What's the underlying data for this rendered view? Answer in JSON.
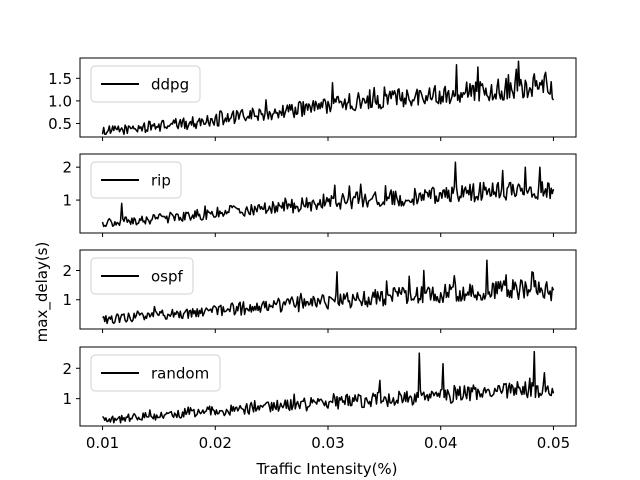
{
  "chart_data": {
    "type": "line",
    "xlabel": "Traffic Intensity(%)",
    "ylabel": "max_delay(s)",
    "x_ticks": [
      "0.01",
      "0.02",
      "0.03",
      "0.04",
      "0.05"
    ],
    "x_tick_values": [
      0.01,
      0.02,
      0.03,
      0.04,
      0.05
    ],
    "xlim": [
      0.008,
      0.052
    ],
    "x_range": [
      0.01,
      0.05
    ],
    "line_color": "#000000",
    "legend_position": "upper-left",
    "shared_x_axis": true,
    "panels": [
      {
        "name": "ddpg",
        "ylim": [
          0.2,
          1.95
        ],
        "yticks": [
          0.5,
          1.0,
          1.5
        ],
        "ytick_labels": [
          "0.5",
          "1.0",
          "1.5"
        ],
        "noise": 0.14,
        "spikes": [
          [
            0.0414,
            1.8
          ],
          [
            0.0433,
            1.75
          ],
          [
            0.0467,
            1.7
          ],
          [
            0.0483,
            1.6
          ],
          [
            0.0492,
            1.55
          ]
        ],
        "x": [
          0.01,
          0.0125,
          0.015,
          0.0175,
          0.02,
          0.0225,
          0.025,
          0.0275,
          0.03,
          0.0325,
          0.035,
          0.0375,
          0.04,
          0.0425,
          0.045,
          0.0475,
          0.05
        ],
        "y": [
          0.32,
          0.38,
          0.45,
          0.5,
          0.58,
          0.66,
          0.74,
          0.82,
          0.9,
          0.98,
          1.04,
          1.1,
          1.15,
          1.2,
          1.25,
          1.3,
          1.25
        ]
      },
      {
        "name": "rip",
        "ylim": [
          0.0,
          2.4
        ],
        "yticks": [
          1,
          2
        ],
        "ytick_labels": [
          "1",
          "2"
        ],
        "noise": 0.17,
        "spikes": [
          [
            0.0117,
            0.9
          ],
          [
            0.0306,
            1.45
          ],
          [
            0.0413,
            2.15
          ],
          [
            0.0455,
            1.9
          ],
          [
            0.0475,
            2.0
          ],
          [
            0.0488,
            2.0
          ]
        ],
        "x": [
          0.01,
          0.0125,
          0.015,
          0.0175,
          0.02,
          0.0225,
          0.025,
          0.0275,
          0.03,
          0.0325,
          0.035,
          0.0375,
          0.04,
          0.0425,
          0.045,
          0.0475,
          0.05
        ],
        "y": [
          0.3,
          0.36,
          0.44,
          0.52,
          0.6,
          0.68,
          0.76,
          0.84,
          0.92,
          1.0,
          1.05,
          1.1,
          1.16,
          1.22,
          1.28,
          1.34,
          1.28
        ]
      },
      {
        "name": "ospf",
        "ylim": [
          0.0,
          2.7
        ],
        "yticks": [
          1,
          2
        ],
        "ytick_labels": [
          "1",
          "2"
        ],
        "noise": 0.2,
        "spikes": [
          [
            0.0308,
            1.95
          ],
          [
            0.0372,
            1.8
          ],
          [
            0.0385,
            2.0
          ],
          [
            0.0441,
            2.35
          ],
          [
            0.0458,
            1.85
          ],
          [
            0.0481,
            1.95
          ]
        ],
        "x": [
          0.01,
          0.0125,
          0.015,
          0.0175,
          0.02,
          0.0225,
          0.025,
          0.0275,
          0.03,
          0.0325,
          0.035,
          0.0375,
          0.04,
          0.0425,
          0.045,
          0.0475,
          0.05
        ],
        "y": [
          0.32,
          0.38,
          0.46,
          0.54,
          0.62,
          0.7,
          0.78,
          0.86,
          0.94,
          1.02,
          1.08,
          1.14,
          1.2,
          1.26,
          1.32,
          1.36,
          1.3
        ]
      },
      {
        "name": "random",
        "ylim": [
          0.1,
          2.7
        ],
        "yticks": [
          1,
          2
        ],
        "ytick_labels": [
          "1",
          "2"
        ],
        "noise": 0.17,
        "spikes": [
          [
            0.0346,
            1.6
          ],
          [
            0.0381,
            2.5
          ],
          [
            0.0402,
            2.15
          ],
          [
            0.0483,
            2.55
          ],
          [
            0.0492,
            1.85
          ]
        ],
        "x": [
          0.01,
          0.0125,
          0.015,
          0.0175,
          0.02,
          0.0225,
          0.025,
          0.0275,
          0.03,
          0.0325,
          0.035,
          0.0375,
          0.04,
          0.0425,
          0.045,
          0.0475,
          0.05
        ],
        "y": [
          0.3,
          0.36,
          0.44,
          0.52,
          0.6,
          0.67,
          0.74,
          0.8,
          0.86,
          0.92,
          0.98,
          1.04,
          1.1,
          1.16,
          1.22,
          1.28,
          1.24
        ]
      }
    ]
  }
}
